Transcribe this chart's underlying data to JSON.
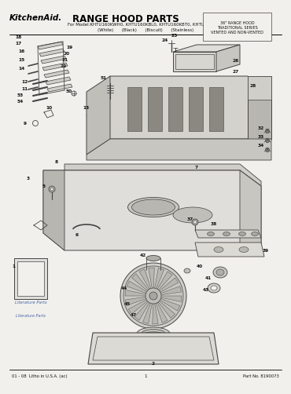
{
  "title": "RANGE HOOD PARTS",
  "brand": "KitchenAid.",
  "subtitle": "For Model:KHTU160KWH0, KHTU160KBL0, KHTU160KBT0, KHTU160KSS0",
  "col_labels": "(White)      (Black)      (Biscuit)      (Stainless)",
  "side_note": "36\" RANGE HOOD\nTRADITIONAL SERIES\nVENTED AND NON-VENTED",
  "footer_left": "01 - 08  Litho in U.S.A. (ac)",
  "footer_center": "1",
  "footer_right": "Part No. 8190073",
  "bg_color": "#f2f0ec",
  "line_color": "#444444",
  "text_color": "#111111"
}
